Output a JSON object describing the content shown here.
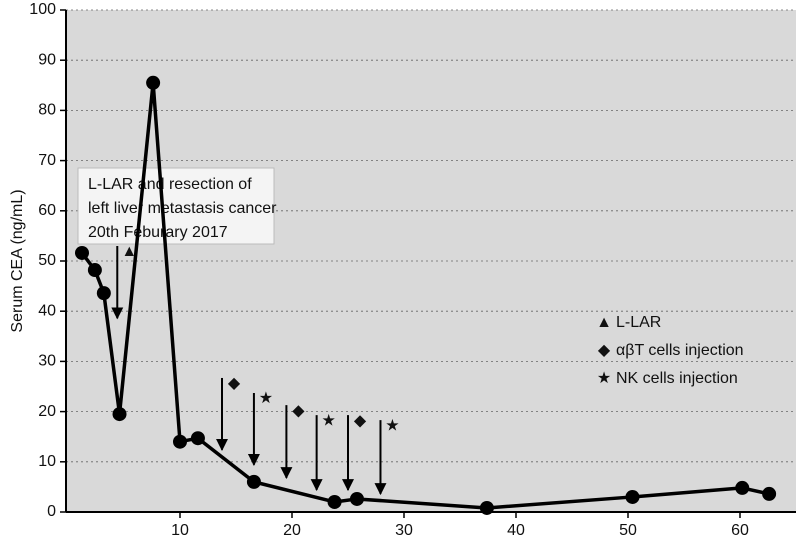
{
  "chart_data": {
    "type": "line",
    "y_label": "Serum CEA (ng/mL)",
    "x": [
      1.25,
      2.4,
      3.2,
      4.6,
      7.6,
      10,
      11.6,
      16.6,
      23.8,
      25.8,
      37.4,
      50.4,
      60.2,
      62.6
    ],
    "values": [
      51.6,
      48.2,
      43.6,
      19.5,
      85.5,
      14,
      14.7,
      6,
      2,
      2.6,
      0.8,
      3,
      4.8,
      3.6
    ],
    "color": "#000000",
    "xlim": [
      0,
      65
    ],
    "xticks": [
      10,
      20,
      30,
      40,
      50,
      60
    ],
    "ylim": [
      0,
      100
    ],
    "yticks": [
      0,
      10,
      20,
      30,
      40,
      50,
      60,
      70,
      80,
      90,
      100
    ],
    "grid": true,
    "annotation": [
      "L-LAR and resection of",
      "left liver metastasis cancer",
      "20th Feburary 2017"
    ],
    "events": [
      {
        "x": 4.4,
        "from": 53,
        "to": 38.6,
        "symbol": "▲"
      },
      {
        "x": 13.75,
        "from": 26.7,
        "to": 12.4,
        "symbol": "◆"
      },
      {
        "x": 16.6,
        "from": 23.7,
        "to": 9.4,
        "symbol": "★"
      },
      {
        "x": 19.5,
        "from": 21.3,
        "to": 6.8,
        "symbol": "◆"
      },
      {
        "x": 22.2,
        "from": 19.3,
        "to": 4.4,
        "symbol": "★"
      },
      {
        "x": 25,
        "from": 19.3,
        "to": 4.4,
        "symbol": "◆"
      },
      {
        "x": 27.9,
        "from": 18.3,
        "to": 3.6,
        "symbol": "★"
      }
    ],
    "legend": [
      {
        "symbol": "▲",
        "label": "L-LAR"
      },
      {
        "symbol": "◆",
        "label": "αβT cells injection"
      },
      {
        "symbol": "★",
        "label": "NK cells injection"
      }
    ]
  }
}
